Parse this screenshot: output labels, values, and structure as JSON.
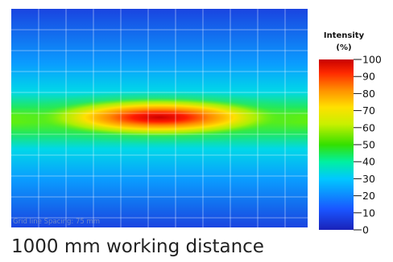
{
  "caption": "1000 mm working distance",
  "chart_data": {
    "type": "heatmap",
    "title": "",
    "colorbar": {
      "title_line1": "Intensity",
      "title_line2": "(%)",
      "ticks": [
        0,
        10,
        20,
        30,
        40,
        50,
        60,
        70,
        80,
        90,
        100
      ],
      "range": [
        0,
        100
      ],
      "colormap": [
        "#1a22b8",
        "#1a55ff",
        "#00c8ff",
        "#00f0a0",
        "#34e000",
        "#c8f000",
        "#ffe000",
        "#ff9000",
        "#ff2a00",
        "#c80000"
      ]
    },
    "grid": true,
    "grid_label": "Grid line Spacing: 75 mm",
    "grid_spacing_mm": 75,
    "beam_profile": {
      "shape": "elliptical line",
      "peak_intensity": 100,
      "orientation": "horizontal",
      "edge_intensity": 20
    }
  }
}
